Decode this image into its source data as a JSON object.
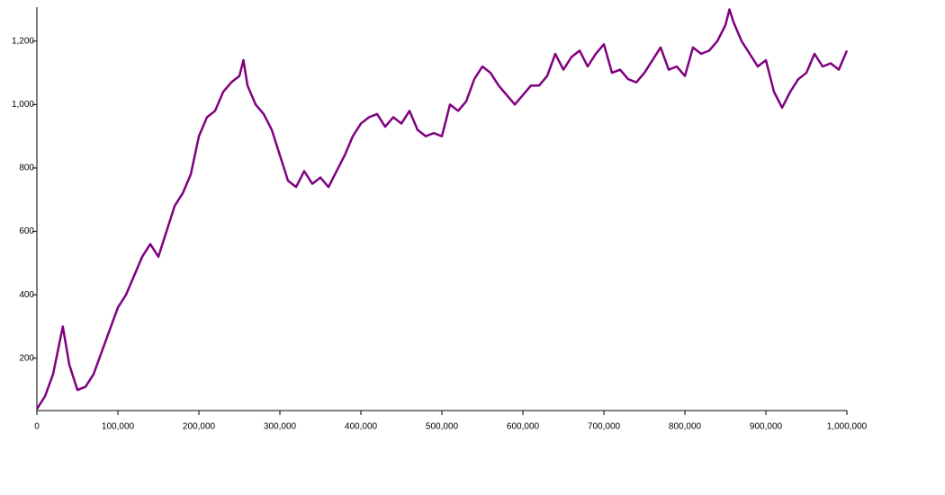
{
  "chart_data": {
    "type": "line",
    "x": [
      0,
      10000,
      20000,
      32000,
      40000,
      50000,
      60000,
      70000,
      80000,
      90000,
      100000,
      110000,
      120000,
      130000,
      140000,
      150000,
      160000,
      170000,
      180000,
      190000,
      200000,
      210000,
      220000,
      230000,
      240000,
      250000,
      255000,
      260000,
      270000,
      280000,
      290000,
      300000,
      310000,
      320000,
      330000,
      340000,
      350000,
      360000,
      370000,
      380000,
      390000,
      400000,
      410000,
      420000,
      430000,
      440000,
      450000,
      460000,
      470000,
      480000,
      490000,
      500000,
      510000,
      520000,
      530000,
      540000,
      550000,
      560000,
      570000,
      580000,
      590000,
      600000,
      610000,
      620000,
      630000,
      640000,
      650000,
      660000,
      670000,
      680000,
      690000,
      700000,
      710000,
      720000,
      730000,
      740000,
      750000,
      760000,
      770000,
      780000,
      790000,
      800000,
      810000,
      820000,
      830000,
      840000,
      850000,
      855000,
      860000,
      870000,
      880000,
      890000,
      900000,
      910000,
      920000,
      930000,
      940000,
      950000,
      960000,
      970000,
      980000,
      990000,
      1000000
    ],
    "series": [
      {
        "color": "#800080",
        "values": [
          40,
          80,
          150,
          300,
          180,
          100,
          110,
          150,
          220,
          290,
          360,
          400,
          460,
          520,
          560,
          520,
          600,
          680,
          720,
          780,
          900,
          960,
          980,
          1040,
          1070,
          1090,
          1140,
          1060,
          1000,
          970,
          920,
          840,
          760,
          740,
          790,
          750,
          770,
          740,
          790,
          840,
          900,
          940,
          960,
          970,
          930,
          960,
          940,
          980,
          920,
          900,
          910,
          900,
          1000,
          980,
          1010,
          1080,
          1120,
          1100,
          1060,
          1030,
          1000,
          1030,
          1060,
          1060,
          1090,
          1160,
          1110,
          1150,
          1170,
          1120,
          1160,
          1190,
          1100,
          1110,
          1080,
          1070,
          1100,
          1140,
          1180,
          1110,
          1120,
          1090,
          1180,
          1160,
          1170,
          1200,
          1250,
          1300,
          1260,
          1200,
          1160,
          1120,
          1140,
          1040,
          990,
          1040,
          1080,
          1100,
          1160,
          1120,
          1130,
          1110,
          1170
        ]
      }
    ],
    "xlim": [
      0,
      1000000
    ],
    "xticks": [
      0,
      {
        "value": 100000,
        "label": "100,000"
      },
      {
        "value": 200000,
        "label": "200,000"
      },
      {
        "value": 300000,
        "label": "300,000"
      },
      {
        "value": 400000,
        "label": "400,000"
      },
      {
        "value": 500000,
        "label": "500,000"
      },
      {
        "value": 600000,
        "label": "600,000"
      },
      {
        "value": 700000,
        "label": "700,000"
      },
      {
        "value": 800000,
        "label": "800,000"
      },
      {
        "value": 900000,
        "label": "900,000"
      },
      {
        "value": 1000000,
        "label": "1,000,000"
      }
    ],
    "ylim": [
      35,
      1307
    ],
    "yticks": [
      200,
      400,
      600,
      800,
      {
        "value": 1000,
        "label": "1,000"
      },
      {
        "value": 1200,
        "label": "1,200"
      }
    ]
  }
}
